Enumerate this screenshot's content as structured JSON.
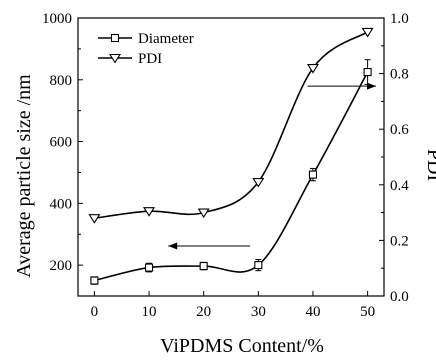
{
  "chart_data": {
    "type": "scatter",
    "title": "",
    "xlabel": "ViPDMS Content/%",
    "ylabel": "Average particle size /nm",
    "y2label": "PDI",
    "xlim": [
      -3,
      53
    ],
    "ylim": [
      100,
      1000
    ],
    "y2lim": [
      0.0,
      1.0
    ],
    "x_ticks": [
      0,
      10,
      20,
      30,
      40,
      50
    ],
    "y_ticks": [
      200,
      400,
      600,
      800,
      1000
    ],
    "y2_ticks": [
      0.0,
      0.2,
      0.4,
      0.6,
      0.8,
      1.0
    ],
    "y_tick_labels": [
      "200",
      "400",
      "600",
      "800",
      "1000"
    ],
    "y2_tick_labels": [
      "0.0",
      "0.2",
      "0.4",
      "0.6",
      "0.8",
      "1.0"
    ],
    "legend_position": "top-left",
    "series": [
      {
        "name": "Diameter",
        "axis": "left",
        "marker": "square",
        "x": [
          0,
          10,
          20,
          30,
          40,
          50
        ],
        "y": [
          150,
          192,
          197,
          200,
          493,
          825
        ],
        "err": [
          12,
          14,
          12,
          18,
          20,
          40
        ]
      },
      {
        "name": "PDI",
        "axis": "right",
        "marker": "triangle-down",
        "x": [
          0,
          10,
          20,
          30,
          40,
          50
        ],
        "y": [
          0.28,
          0.305,
          0.3,
          0.41,
          0.82,
          0.95
        ]
      }
    ]
  }
}
